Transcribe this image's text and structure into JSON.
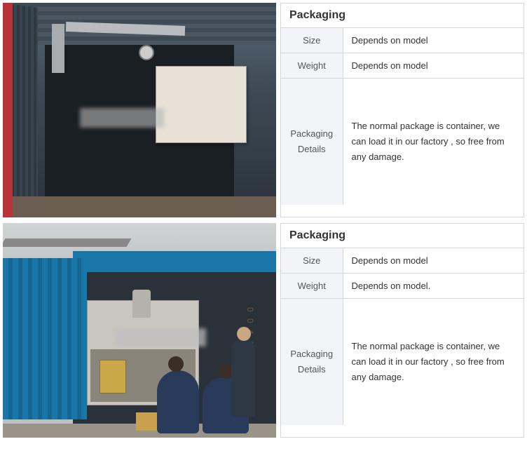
{
  "sections": [
    {
      "title": "Packaging",
      "rows": [
        {
          "label": "Size",
          "value": "Depends on model"
        },
        {
          "label": "Weight",
          "value": "Depends on model"
        },
        {
          "label": "Packaging Details",
          "value": "The normal package is container, we can load it in our factory , so free from any damage."
        }
      ]
    },
    {
      "title": "Packaging",
      "rows": [
        {
          "label": "Size",
          "value": "Depends on model"
        },
        {
          "label": "Weight",
          "value": "Depends on model."
        },
        {
          "label": "Packaging Details",
          "value": "The normal package is container, we can load it in our factory , so free from any damage."
        }
      ]
    }
  ],
  "colors": {
    "border": "#d6d6d6",
    "label_bg": "#f2f4f7",
    "text": "#333333",
    "container_blue": "#1876a8",
    "red_edge": "#b8333a"
  }
}
